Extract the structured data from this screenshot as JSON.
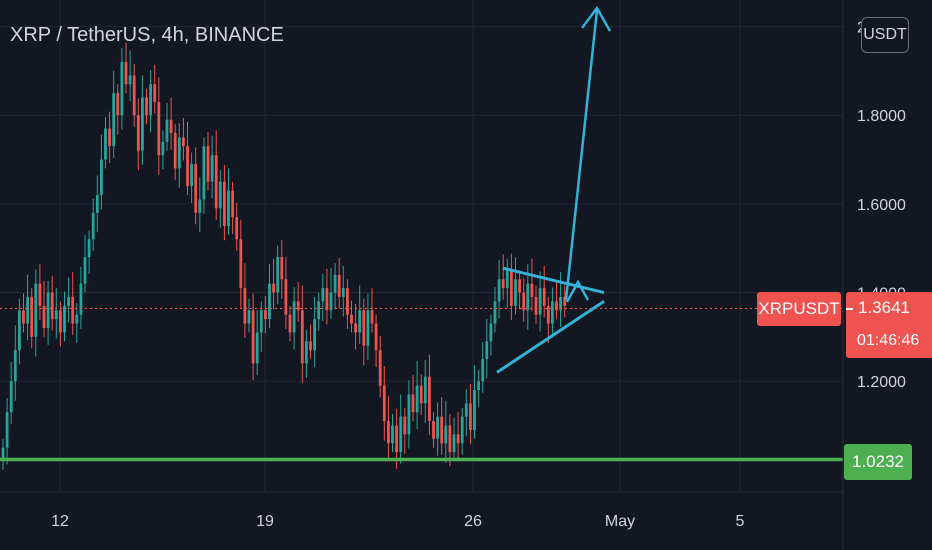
{
  "header": {
    "symbol_title": "XRP / TetherUS, 4h, BINANCE"
  },
  "price_axis": {
    "unit_badge": "USDT",
    "top_partial_label": "2"
  },
  "price_tag": {
    "symbol": "XRPUSDT",
    "price": "1.3641",
    "countdown": "01:46:46",
    "color": "#ef5350"
  },
  "support_tag": {
    "price": "1.0232",
    "color": "#4caf50"
  },
  "chart_data": {
    "type": "candlestick",
    "title": "XRP / TetherUS, 4h, BINANCE",
    "interval": "4h",
    "exchange": "BINANCE",
    "x_ticks": [
      "12",
      "19",
      "26",
      "May",
      "5"
    ],
    "y_ticks": [
      "1.2000",
      "1.4000",
      "1.6000",
      "1.8000",
      "2"
    ],
    "ylim": [
      0.95,
      2.06
    ],
    "grid": true,
    "up_color": "#26a69a",
    "down_color": "#ef5350",
    "current_price": 1.3641,
    "support_level": 1.0232,
    "candle_closes": [
      1.05,
      1.13,
      1.2,
      1.27,
      1.36,
      1.33,
      1.39,
      1.3,
      1.42,
      1.37,
      1.32,
      1.4,
      1.34,
      1.36,
      1.31,
      1.37,
      1.39,
      1.33,
      1.35,
      1.42,
      1.48,
      1.52,
      1.58,
      1.62,
      1.7,
      1.77,
      1.73,
      1.85,
      1.8,
      1.92,
      1.87,
      1.89,
      1.8,
      1.72,
      1.84,
      1.8,
      1.87,
      1.83,
      1.71,
      1.74,
      1.79,
      1.76,
      1.68,
      1.75,
      1.73,
      1.64,
      1.69,
      1.58,
      1.61,
      1.73,
      1.65,
      1.71,
      1.59,
      1.65,
      1.55,
      1.63,
      1.57,
      1.52,
      1.41,
      1.33,
      1.36,
      1.24,
      1.31,
      1.36,
      1.34,
      1.42,
      1.4,
      1.48,
      1.43,
      1.35,
      1.31,
      1.38,
      1.36,
      1.24,
      1.29,
      1.27,
      1.34,
      1.38,
      1.41,
      1.36,
      1.4,
      1.44,
      1.39,
      1.41,
      1.35,
      1.33,
      1.31,
      1.36,
      1.28,
      1.36,
      1.33,
      1.27,
      1.19,
      1.11,
      1.06,
      1.1,
      1.04,
      1.12,
      1.08,
      1.17,
      1.13,
      1.19,
      1.15,
      1.21,
      1.11,
      1.07,
      1.12,
      1.06,
      1.1,
      1.04,
      1.08,
      1.06,
      1.12,
      1.15,
      1.09,
      1.18,
      1.2,
      1.25,
      1.29,
      1.33,
      1.38,
      1.43,
      1.41,
      1.45,
      1.37,
      1.43,
      1.4,
      1.36,
      1.42,
      1.39,
      1.35,
      1.41,
      1.37,
      1.33,
      1.38,
      1.36,
      1.39,
      1.37
    ],
    "annotations": {
      "triangle_upper_line": [
        [
          1.455,
          1.4
        ]
      ],
      "triangle_lower_line": [
        [
          1.22,
          1.38
        ]
      ],
      "target_arrow_top": 2.07,
      "color": "#33b1d6"
    }
  }
}
